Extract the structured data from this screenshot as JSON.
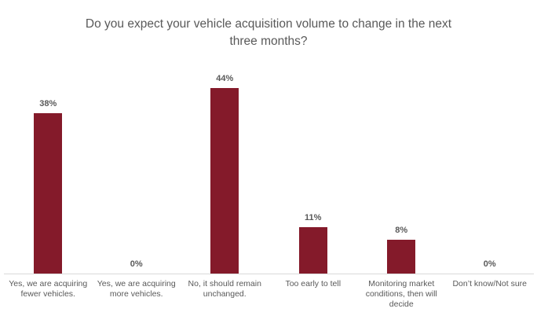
{
  "chart_data": {
    "type": "bar",
    "title": "Do you expect your vehicle acquisition volume to change in the next three months?",
    "title_lines": [
      "Do you expect your vehicle acquisition volume to change in the next",
      "three months?"
    ],
    "categories": [
      "Yes, we are acquiring fewer vehicles.",
      "Yes, we are acquiring more vehicles.",
      "No, it should remain unchanged.",
      "Too early to tell",
      "Monitoring market conditions, then will decide",
      "Don’t know/Not sure"
    ],
    "values": [
      38,
      0,
      44,
      11,
      8,
      0
    ],
    "data_labels": [
      "38%",
      "0%",
      "44%",
      "11%",
      "8%",
      "0%"
    ],
    "xlabel": "",
    "ylabel": "",
    "ylim": [
      0,
      50
    ],
    "grid": false,
    "legend": "none",
    "colors": {
      "bar": "#841A2A",
      "title": "#595959",
      "data_label": "#595959",
      "category_label": "#595959",
      "axis_line": "#D9D9D9",
      "background": "#FFFFFF"
    }
  }
}
